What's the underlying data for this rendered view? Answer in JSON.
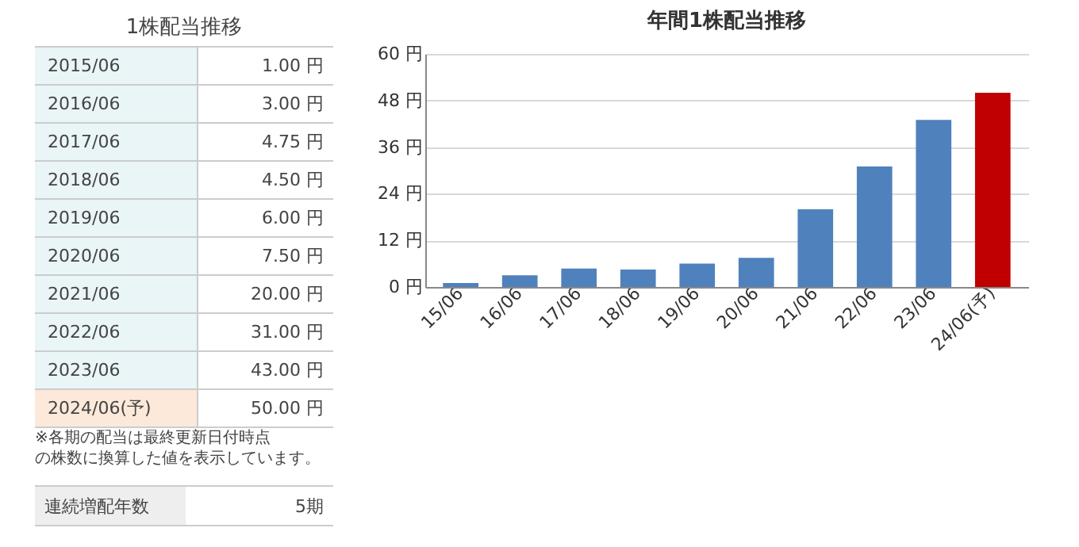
{
  "chart_data": [
    {
      "type": "other",
      "title": "1株配当推移",
      "categories": [
        "2015/06",
        "2016/06",
        "2017/06",
        "2018/06",
        "2019/06",
        "2020/06",
        "2021/06",
        "2022/06",
        "2023/06",
        "2024/06(予)"
      ],
      "value_labels": [
        "1.00 円",
        "3.00 円",
        "4.75 円",
        "4.50 円",
        "6.00 円",
        "7.50 円",
        "20.00 円",
        "31.00 円",
        "43.00 円",
        "50.00 円"
      ],
      "annotations": [
        "※各期の配当は最終更新日付時点",
        "の株数に換算した値を表示しています。",
        "連続増配年数",
        "5期"
      ]
    },
    {
      "type": "bar",
      "title": "年間1株配当推移",
      "categories": [
        "15/06",
        "16/06",
        "17/06",
        "18/06",
        "19/06",
        "20/06",
        "21/06",
        "22/06",
        "23/06",
        "24/06(予)"
      ],
      "values": [
        1,
        3,
        4.75,
        4.5,
        6,
        7.5,
        20,
        31,
        43,
        50
      ],
      "colors": [
        "#4f81bd",
        "#4f81bd",
        "#4f81bd",
        "#4f81bd",
        "#4f81bd",
        "#4f81bd",
        "#4f81bd",
        "#4f81bd",
        "#4f81bd",
        "#c00000"
      ],
      "ylim": [
        0,
        60
      ],
      "yticks": [
        {
          "value": 0,
          "label": "0 円"
        },
        {
          "value": 12,
          "label": "12 円"
        },
        {
          "value": 24,
          "label": "24 円"
        },
        {
          "value": 36,
          "label": "36 円"
        },
        {
          "value": 48,
          "label": "48 円"
        },
        {
          "value": 60,
          "label": "60 円"
        }
      ],
      "grid": "y"
    }
  ]
}
